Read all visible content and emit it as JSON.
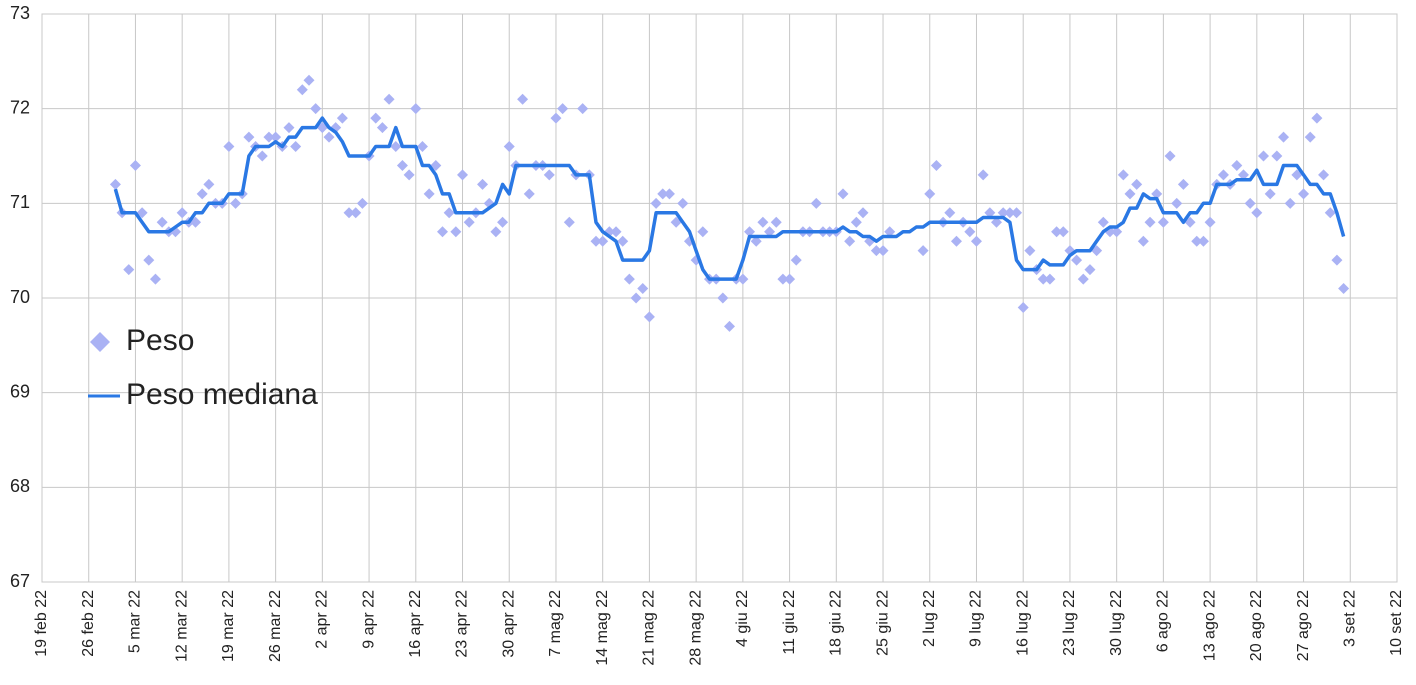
{
  "chart_data": {
    "type": "line",
    "x": [
      "2022-03-02",
      "2022-03-03",
      "2022-03-04",
      "2022-03-05",
      "2022-03-06",
      "2022-03-07",
      "2022-03-08",
      "2022-03-09",
      "2022-03-10",
      "2022-03-11",
      "2022-03-12",
      "2022-03-13",
      "2022-03-14",
      "2022-03-15",
      "2022-03-16",
      "2022-03-17",
      "2022-03-18",
      "2022-03-19",
      "2022-03-20",
      "2022-03-21",
      "2022-03-22",
      "2022-03-23",
      "2022-03-24",
      "2022-03-25",
      "2022-03-26",
      "2022-03-27",
      "2022-03-28",
      "2022-03-29",
      "2022-03-30",
      "2022-03-31",
      "2022-04-01",
      "2022-04-02",
      "2022-04-03",
      "2022-04-04",
      "2022-04-05",
      "2022-04-06",
      "2022-04-07",
      "2022-04-08",
      "2022-04-09",
      "2022-04-10",
      "2022-04-11",
      "2022-04-12",
      "2022-04-13",
      "2022-04-14",
      "2022-04-15",
      "2022-04-16",
      "2022-04-17",
      "2022-04-18",
      "2022-04-19",
      "2022-04-20",
      "2022-04-21",
      "2022-04-22",
      "2022-04-23",
      "2022-04-24",
      "2022-04-25",
      "2022-04-26",
      "2022-04-27",
      "2022-04-28",
      "2022-04-29",
      "2022-04-30",
      "2022-05-01",
      "2022-05-02",
      "2022-05-03",
      "2022-05-04",
      "2022-05-05",
      "2022-05-06",
      "2022-05-07",
      "2022-05-08",
      "2022-05-09",
      "2022-05-10",
      "2022-05-11",
      "2022-05-12",
      "2022-05-13",
      "2022-05-14",
      "2022-05-15",
      "2022-05-16",
      "2022-05-17",
      "2022-05-18",
      "2022-05-19",
      "2022-05-20",
      "2022-05-21",
      "2022-05-22",
      "2022-05-23",
      "2022-05-24",
      "2022-05-25",
      "2022-05-26",
      "2022-05-27",
      "2022-05-28",
      "2022-05-29",
      "2022-05-30",
      "2022-05-31",
      "2022-06-01",
      "2022-06-02",
      "2022-06-03",
      "2022-06-04",
      "2022-06-05",
      "2022-06-06",
      "2022-06-07",
      "2022-06-08",
      "2022-06-09",
      "2022-06-10",
      "2022-06-11",
      "2022-06-12",
      "2022-06-13",
      "2022-06-14",
      "2022-06-15",
      "2022-06-16",
      "2022-06-17",
      "2022-06-18",
      "2022-06-19",
      "2022-06-20",
      "2022-06-21",
      "2022-06-22",
      "2022-06-23",
      "2022-06-24",
      "2022-06-25",
      "2022-06-26",
      "2022-06-27",
      "2022-06-28",
      "2022-06-29",
      "2022-06-30",
      "2022-07-01",
      "2022-07-02",
      "2022-07-03",
      "2022-07-04",
      "2022-07-05",
      "2022-07-06",
      "2022-07-07",
      "2022-07-08",
      "2022-07-09",
      "2022-07-10",
      "2022-07-11",
      "2022-07-12",
      "2022-07-13",
      "2022-07-14",
      "2022-07-15",
      "2022-07-16",
      "2022-07-17",
      "2022-07-18",
      "2022-07-19",
      "2022-07-20",
      "2022-07-21",
      "2022-07-22",
      "2022-07-23",
      "2022-07-24",
      "2022-07-25",
      "2022-07-26",
      "2022-07-27",
      "2022-07-28",
      "2022-07-29",
      "2022-07-30",
      "2022-07-31",
      "2022-08-01",
      "2022-08-02",
      "2022-08-03",
      "2022-08-04",
      "2022-08-05",
      "2022-08-06",
      "2022-08-07",
      "2022-08-08",
      "2022-08-09",
      "2022-08-10",
      "2022-08-11",
      "2022-08-12",
      "2022-08-13",
      "2022-08-14",
      "2022-08-15",
      "2022-08-16",
      "2022-08-17",
      "2022-08-18",
      "2022-08-19",
      "2022-08-20",
      "2022-08-21",
      "2022-08-22",
      "2022-08-23",
      "2022-08-24",
      "2022-08-25",
      "2022-08-26",
      "2022-08-27",
      "2022-08-28",
      "2022-08-29",
      "2022-08-30",
      "2022-08-31",
      "2022-09-01",
      "2022-09-02"
    ],
    "series": [
      {
        "name": "Peso",
        "mode": "markers",
        "color": "#aab2f4",
        "values": [
          71.2,
          70.9,
          70.3,
          71.4,
          70.9,
          70.4,
          70.2,
          70.8,
          70.7,
          70.7,
          70.9,
          70.8,
          70.8,
          71.1,
          71.2,
          71.0,
          71.0,
          71.6,
          71.0,
          71.1,
          71.7,
          71.6,
          71.5,
          71.7,
          71.7,
          71.6,
          71.8,
          71.6,
          72.2,
          72.3,
          72.0,
          71.8,
          71.7,
          71.8,
          71.9,
          70.9,
          70.9,
          71.0,
          71.5,
          71.9,
          71.8,
          72.1,
          71.6,
          71.4,
          71.3,
          72.0,
          71.6,
          71.1,
          71.4,
          70.7,
          70.9,
          70.7,
          71.3,
          70.8,
          70.9,
          71.2,
          71.0,
          70.7,
          70.8,
          71.6,
          71.4,
          72.1,
          71.1,
          71.4,
          71.4,
          71.3,
          71.9,
          72.0,
          70.8,
          71.3,
          72.0,
          71.3,
          70.6,
          70.6,
          70.7,
          70.7,
          70.6,
          70.2,
          70.0,
          70.1,
          69.8,
          71.0,
          71.1,
          71.1,
          70.8,
          71.0,
          70.6,
          70.4,
          70.7,
          70.2,
          70.2,
          70.0,
          69.7,
          70.2,
          70.2,
          70.7,
          70.6,
          70.8,
          70.7,
          70.8,
          70.2,
          70.2,
          70.4,
          70.7,
          70.7,
          71.0,
          70.7,
          70.7,
          70.7,
          71.1,
          70.6,
          70.8,
          70.9,
          70.6,
          70.5,
          70.5,
          70.7,
          null,
          null,
          null,
          null,
          70.5,
          71.1,
          71.4,
          70.8,
          70.9,
          70.6,
          70.8,
          70.7,
          70.6,
          71.3,
          70.9,
          70.8,
          70.9,
          70.9,
          70.9,
          69.9,
          70.5,
          70.3,
          70.2,
          70.2,
          70.7,
          70.7,
          70.5,
          70.4,
          70.2,
          70.3,
          70.5,
          70.8,
          70.7,
          70.7,
          71.3,
          71.1,
          71.2,
          70.6,
          70.8,
          71.1,
          70.8,
          71.5,
          71.0,
          71.2,
          70.8,
          70.6,
          70.6,
          70.8,
          71.2,
          71.3,
          71.2,
          71.4,
          71.3,
          71.0,
          70.9,
          71.5,
          71.1,
          71.5,
          71.7,
          71.0,
          71.3,
          71.1,
          71.7,
          71.9,
          71.3,
          70.9,
          70.4,
          70.1
        ]
      },
      {
        "name": "Peso mediana",
        "mode": "line",
        "color": "#2a78e4",
        "values": [
          71.15,
          70.9,
          70.9,
          70.9,
          70.8,
          70.7,
          70.7,
          70.7,
          70.7,
          70.75,
          70.8,
          70.8,
          70.9,
          70.9,
          71.0,
          71.0,
          71.0,
          71.1,
          71.1,
          71.1,
          71.5,
          71.6,
          71.6,
          71.6,
          71.65,
          71.6,
          71.7,
          71.7,
          71.8,
          71.8,
          71.8,
          71.9,
          71.8,
          71.75,
          71.65,
          71.5,
          71.5,
          71.5,
          71.5,
          71.6,
          71.6,
          71.6,
          71.8,
          71.6,
          71.6,
          71.6,
          71.4,
          71.4,
          71.3,
          71.1,
          71.1,
          70.9,
          70.9,
          70.9,
          70.9,
          70.9,
          70.95,
          71.0,
          71.2,
          71.1,
          71.4,
          71.4,
          71.4,
          71.4,
          71.4,
          71.4,
          71.4,
          71.4,
          71.4,
          71.3,
          71.3,
          71.3,
          70.8,
          70.7,
          70.65,
          70.6,
          70.4,
          70.4,
          70.4,
          70.4,
          70.5,
          70.9,
          70.9,
          70.9,
          70.9,
          70.8,
          70.7,
          70.5,
          70.3,
          70.2,
          70.2,
          70.2,
          70.2,
          70.2,
          70.4,
          70.65,
          70.65,
          70.65,
          70.65,
          70.65,
          70.7,
          70.7,
          70.7,
          70.7,
          70.7,
          70.7,
          70.7,
          70.7,
          70.7,
          70.75,
          70.7,
          70.7,
          70.65,
          70.65,
          70.6,
          70.65,
          70.65,
          70.65,
          70.7,
          70.7,
          70.75,
          70.75,
          70.8,
          70.8,
          70.8,
          70.8,
          70.8,
          70.8,
          70.8,
          70.8,
          70.85,
          70.85,
          70.85,
          70.85,
          70.8,
          70.4,
          70.3,
          70.3,
          70.3,
          70.4,
          70.35,
          70.35,
          70.35,
          70.45,
          70.5,
          70.5,
          70.5,
          70.6,
          70.7,
          70.75,
          70.75,
          70.8,
          70.95,
          70.95,
          71.1,
          71.05,
          71.05,
          70.9,
          70.9,
          70.9,
          70.8,
          70.9,
          70.9,
          71.0,
          71.0,
          71.2,
          71.2,
          71.2,
          71.25,
          71.25,
          71.25,
          71.35,
          71.2,
          71.2,
          71.2,
          71.4,
          71.4,
          71.4,
          71.3,
          71.2,
          71.2,
          71.1,
          71.1,
          70.9,
          70.65
        ]
      }
    ],
    "xlim": [
      "2022-02-19",
      "2022-09-10"
    ],
    "xticks": [
      {
        "value": "2022-02-19",
        "label": "19 feb 22"
      },
      {
        "value": "2022-02-26",
        "label": "26 feb 22"
      },
      {
        "value": "2022-03-05",
        "label": "5 mar 22"
      },
      {
        "value": "2022-03-12",
        "label": "12 mar 22"
      },
      {
        "value": "2022-03-19",
        "label": "19 mar 22"
      },
      {
        "value": "2022-03-26",
        "label": "26 mar 22"
      },
      {
        "value": "2022-04-02",
        "label": "2 apr 22"
      },
      {
        "value": "2022-04-09",
        "label": "9 apr 22"
      },
      {
        "value": "2022-04-16",
        "label": "16 apr 22"
      },
      {
        "value": "2022-04-23",
        "label": "23 apr 22"
      },
      {
        "value": "2022-04-30",
        "label": "30 apr 22"
      },
      {
        "value": "2022-05-07",
        "label": "7 mag 22"
      },
      {
        "value": "2022-05-14",
        "label": "14 mag 22"
      },
      {
        "value": "2022-05-21",
        "label": "21 mag 22"
      },
      {
        "value": "2022-05-28",
        "label": "28 mag 22"
      },
      {
        "value": "2022-06-04",
        "label": "4 giu 22"
      },
      {
        "value": "2022-06-11",
        "label": "11 giu 22"
      },
      {
        "value": "2022-06-18",
        "label": "18 giu 22"
      },
      {
        "value": "2022-06-25",
        "label": "25 giu 22"
      },
      {
        "value": "2022-07-02",
        "label": "2 lug 22"
      },
      {
        "value": "2022-07-09",
        "label": "9 lug 22"
      },
      {
        "value": "2022-07-16",
        "label": "16 lug 22"
      },
      {
        "value": "2022-07-23",
        "label": "23 lug 22"
      },
      {
        "value": "2022-07-30",
        "label": "30 lug 22"
      },
      {
        "value": "2022-08-06",
        "label": "6 ago 22"
      },
      {
        "value": "2022-08-13",
        "label": "13 ago 22"
      },
      {
        "value": "2022-08-20",
        "label": "20 ago 22"
      },
      {
        "value": "2022-08-27",
        "label": "27 ago 22"
      },
      {
        "value": "2022-09-03",
        "label": "3 set 22"
      },
      {
        "value": "2022-09-10",
        "label": "10 set 22"
      }
    ],
    "ylim": [
      67,
      73
    ],
    "yticks": [
      67,
      68,
      69,
      70,
      71,
      72,
      73
    ],
    "grid": true,
    "legend": "left"
  }
}
